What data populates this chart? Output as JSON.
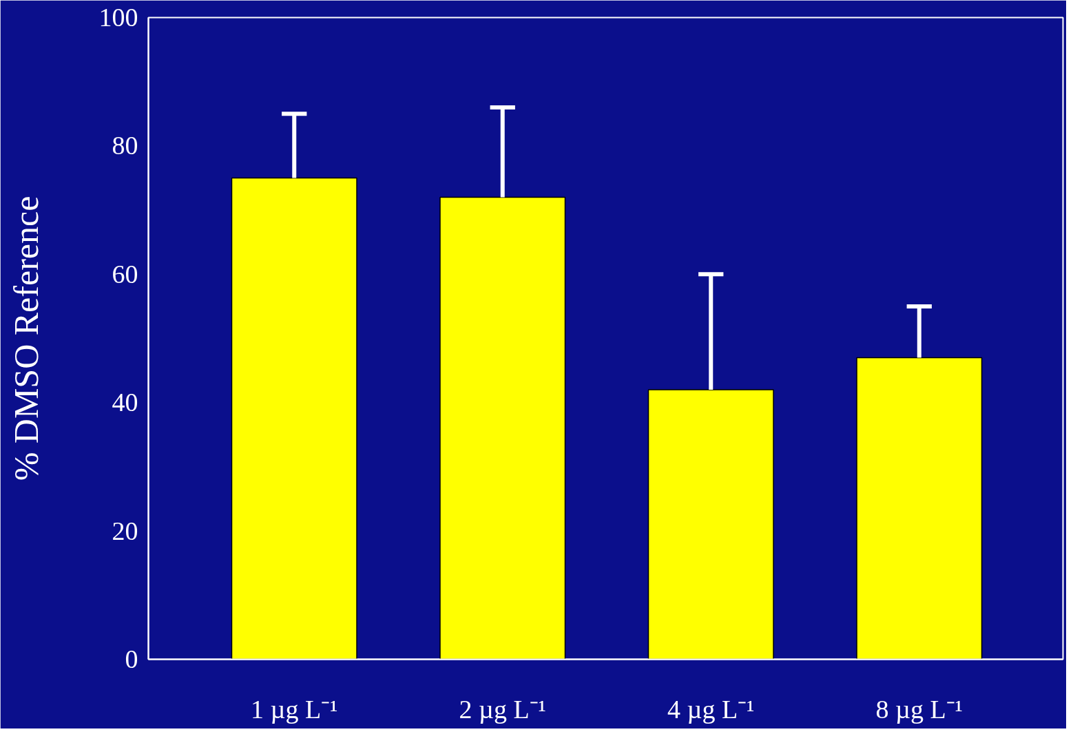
{
  "chart_data": {
    "type": "bar",
    "ylabel": "% DMSO Reference",
    "categories": [
      "1 µg L⁻¹",
      "2 µg L⁻¹",
      "4 µg L⁻¹",
      "8 µg L⁻¹"
    ],
    "values": [
      75,
      72,
      42,
      47
    ],
    "errors": [
      [
        75,
        85
      ],
      [
        72,
        86
      ],
      [
        42,
        60
      ],
      [
        47,
        55
      ]
    ],
    "color": "#ffff00",
    "ylim": [
      0,
      100
    ],
    "yticks": [
      0,
      20,
      40,
      60,
      80,
      100
    ]
  }
}
